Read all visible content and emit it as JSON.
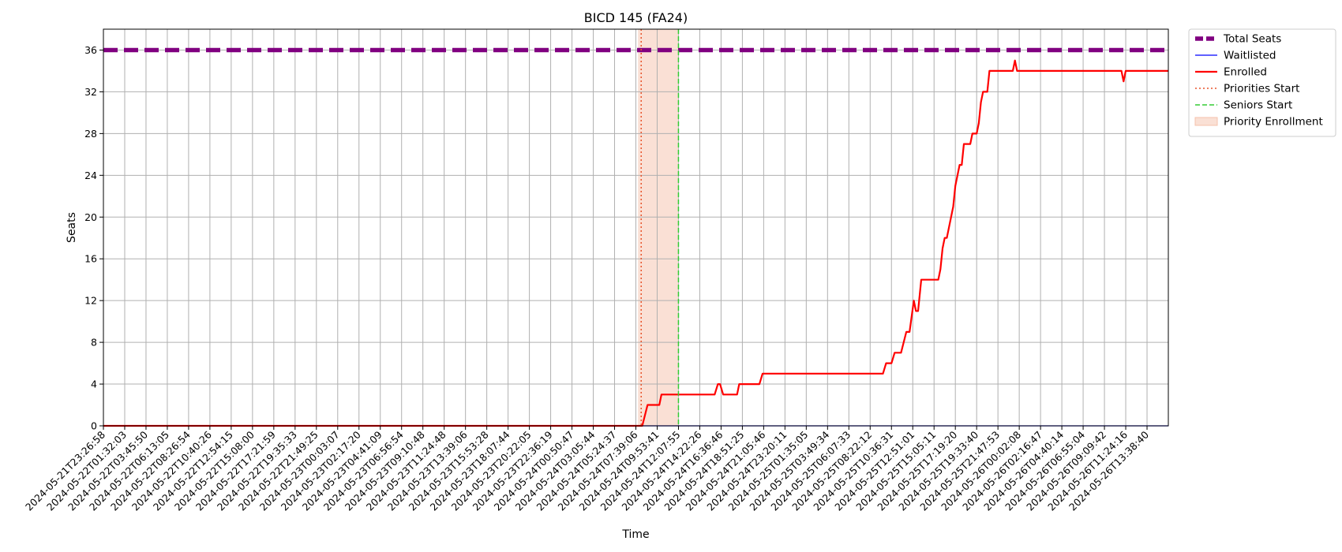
{
  "chart_data": {
    "type": "line",
    "title": "BICD 145 (FA24)",
    "xlabel": "Time",
    "ylabel": "Seats",
    "ylim": [
      0,
      38
    ],
    "y_ticks": [
      0,
      4,
      8,
      12,
      16,
      20,
      24,
      28,
      32,
      36
    ],
    "grid": true,
    "legend_position": "outside-top-right",
    "x_tick_labels": [
      "2024-05-21T23:26:58",
      "2024-05-22T01:32:03",
      "2024-05-22T03:45:50",
      "2024-05-22T06:13:05",
      "2024-05-22T08:26:54",
      "2024-05-22T10:40:26",
      "2024-05-22T12:54:15",
      "2024-05-22T15:08:00",
      "2024-05-22T17:21:59",
      "2024-05-22T19:35:33",
      "2024-05-22T21:49:25",
      "2024-05-23T00:03:07",
      "2024-05-23T02:17:20",
      "2024-05-23T04:41:09",
      "2024-05-23T06:56:54",
      "2024-05-23T09:10:48",
      "2024-05-23T11:24:48",
      "2024-05-23T13:39:06",
      "2024-05-23T15:53:28",
      "2024-05-23T18:07:44",
      "2024-05-23T20:22:05",
      "2024-05-23T22:36:19",
      "2024-05-24T00:50:47",
      "2024-05-24T03:05:44",
      "2024-05-24T05:24:37",
      "2024-05-24T07:39:06",
      "2024-05-24T09:53:41",
      "2024-05-24T12:07:55",
      "2024-05-24T14:22:26",
      "2024-05-24T16:36:46",
      "2024-05-24T18:51:25",
      "2024-05-24T21:05:46",
      "2024-05-24T23:20:11",
      "2024-05-25T01:35:05",
      "2024-05-25T03:49:34",
      "2024-05-25T06:07:33",
      "2024-05-25T08:22:12",
      "2024-05-25T10:36:31",
      "2024-05-25T12:51:01",
      "2024-05-25T15:05:11",
      "2024-05-25T17:19:20",
      "2024-05-25T19:33:40",
      "2024-05-25T21:47:53",
      "2024-05-26T00:02:08",
      "2024-05-26T02:16:47",
      "2024-05-26T04:40:14",
      "2024-05-26T06:55:04",
      "2024-05-26T09:09:42",
      "2024-05-26T11:24:16",
      "2024-05-26T13:38:40"
    ],
    "x_index_range": [
      0,
      50
    ],
    "series": [
      {
        "name": "Total Seats",
        "color": "#800080",
        "style": "dashed-thick",
        "points": [
          [
            0,
            36
          ],
          [
            50,
            36
          ]
        ]
      },
      {
        "name": "Waitlisted",
        "color": "#0000ff",
        "style": "solid-thin",
        "points": [
          [
            0,
            0
          ],
          [
            50,
            0
          ]
        ]
      },
      {
        "name": "Enrolled",
        "color": "#ff0000",
        "style": "solid",
        "points": [
          [
            0,
            0
          ],
          [
            25.3,
            0
          ],
          [
            25.55,
            2
          ],
          [
            26.1,
            2
          ],
          [
            26.2,
            3
          ],
          [
            28.7,
            3
          ],
          [
            28.85,
            4
          ],
          [
            28.95,
            4
          ],
          [
            29.1,
            3
          ],
          [
            29.75,
            3
          ],
          [
            29.85,
            4
          ],
          [
            30.8,
            4
          ],
          [
            30.95,
            5
          ],
          [
            36.6,
            5
          ],
          [
            36.75,
            6
          ],
          [
            37.0,
            6
          ],
          [
            37.15,
            7
          ],
          [
            37.45,
            7
          ],
          [
            37.7,
            9
          ],
          [
            37.85,
            9
          ],
          [
            38.05,
            12
          ],
          [
            38.15,
            11
          ],
          [
            38.25,
            11
          ],
          [
            38.4,
            14
          ],
          [
            39.2,
            14
          ],
          [
            39.3,
            15
          ],
          [
            39.4,
            17
          ],
          [
            39.5,
            18
          ],
          [
            39.6,
            18
          ],
          [
            39.9,
            21
          ],
          [
            40.0,
            23
          ],
          [
            40.2,
            25
          ],
          [
            40.3,
            25
          ],
          [
            40.4,
            27
          ],
          [
            40.7,
            27
          ],
          [
            40.8,
            28
          ],
          [
            41.0,
            28
          ],
          [
            41.1,
            29
          ],
          [
            41.2,
            31
          ],
          [
            41.3,
            32
          ],
          [
            41.5,
            32
          ],
          [
            41.6,
            34
          ],
          [
            42.7,
            34
          ],
          [
            42.8,
            35
          ],
          [
            42.9,
            34
          ],
          [
            47.8,
            34
          ],
          [
            47.9,
            33
          ],
          [
            48.0,
            34
          ],
          [
            50,
            34
          ]
        ]
      }
    ],
    "markers": [
      {
        "name": "Priorities Start",
        "color": "#e8542b",
        "style": "dotted",
        "x": 25.25
      },
      {
        "name": "Seniors Start",
        "color": "#33cc33",
        "style": "dashed",
        "x": 27.0
      }
    ],
    "shaded_regions": [
      {
        "name": "Priority Enrollment",
        "color": "#f5c2ac",
        "x_start": 25.1,
        "x_end": 27.0
      }
    ],
    "legend": [
      "Total Seats",
      "Waitlisted",
      "Enrolled",
      "Priorities Start",
      "Seniors Start",
      "Priority Enrollment"
    ]
  }
}
